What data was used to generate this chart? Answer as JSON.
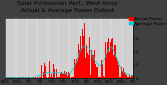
{
  "title": "Solar PV/Inverter Perf., West Array",
  "title2": "Actual & Average Power Output",
  "legend_labels": [
    "Actual Power",
    "Average Power"
  ],
  "legend_colors": [
    "#ff0000",
    "#00cccc"
  ],
  "bg_color": "#404040",
  "plot_bg_color": "#d0d0d0",
  "bar_color": "#ff0000",
  "avg_color": "#00cccc",
  "grid_color": "#ffffff",
  "ylim": [
    0,
    9
  ],
  "yticks": [
    0,
    2,
    4,
    6,
    8
  ],
  "ytick_labels": [
    "0",
    "2",
    "4",
    "6",
    "8"
  ],
  "x_tick_labels": [
    "6/17",
    "6/24",
    "7/1",
    "7/8",
    "7/15",
    "7/22",
    "7/29",
    "8/5",
    "8/12",
    "8/19",
    "8/26",
    "9/3"
  ],
  "title_fontsize": 4.2,
  "tick_fontsize": 2.8,
  "legend_fontsize": 3.2,
  "num_points": 200
}
